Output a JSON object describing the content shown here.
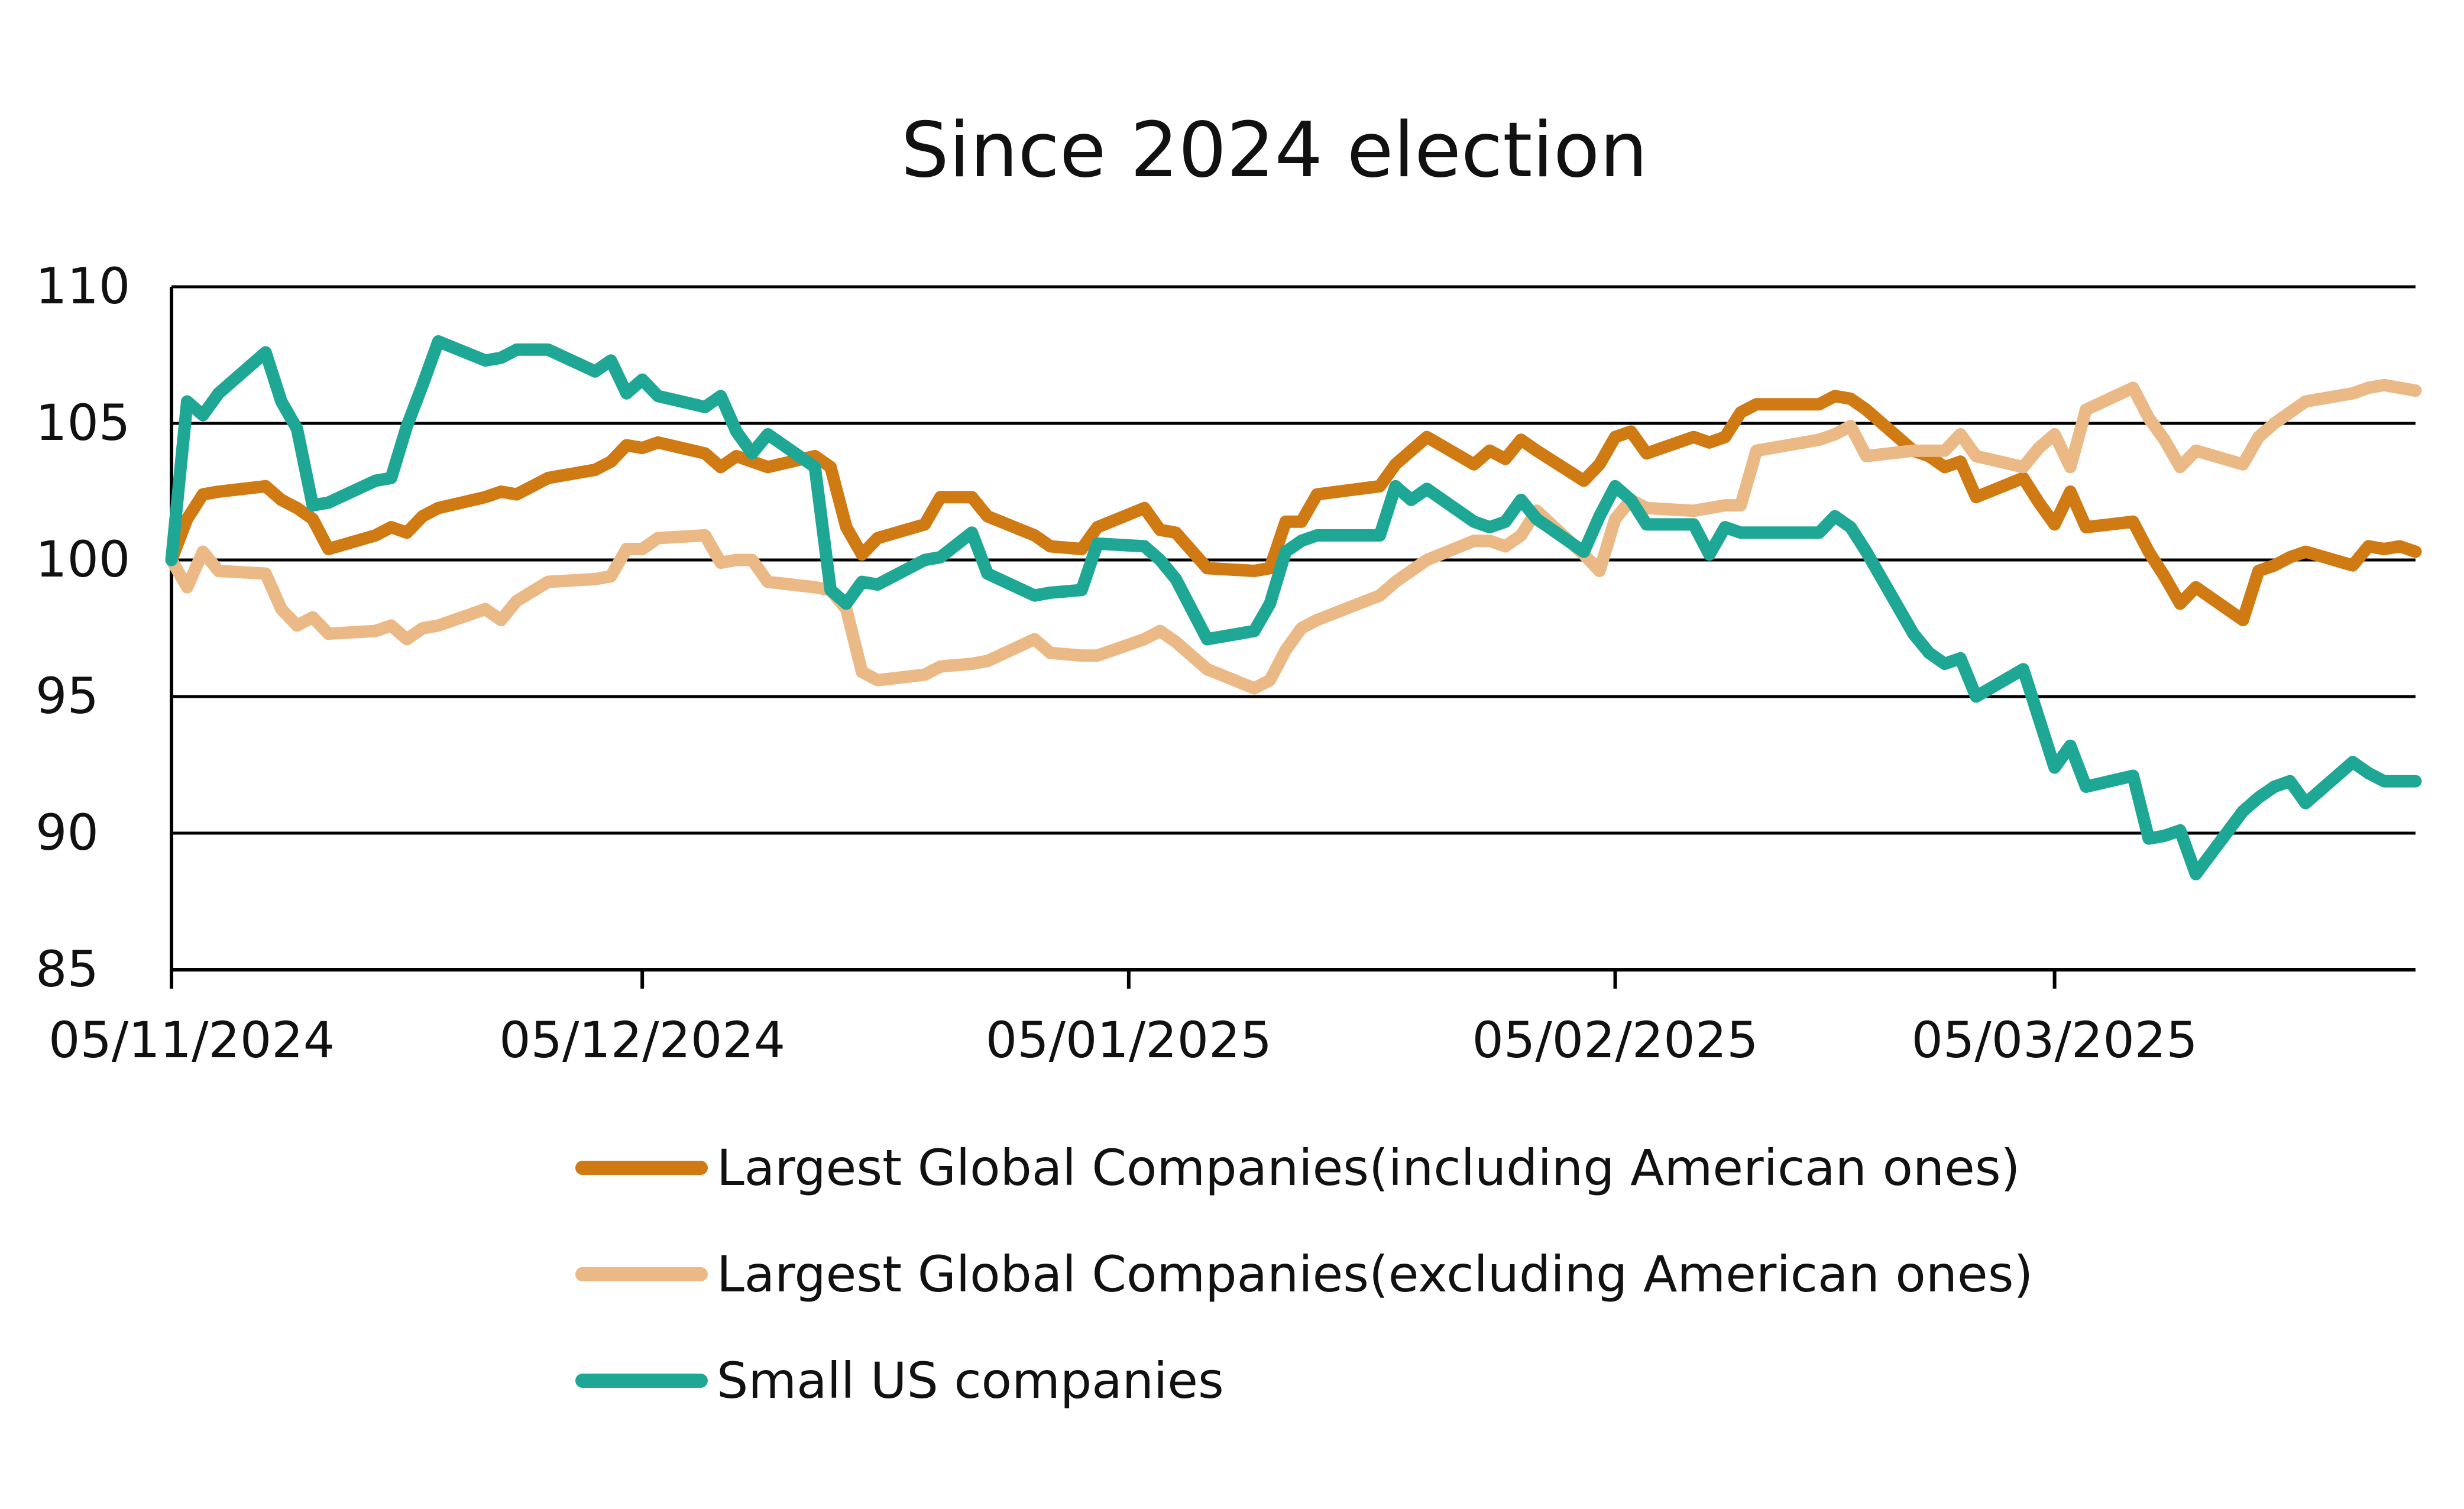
{
  "chart_data": {
    "type": "line",
    "title": "Since 2024 election",
    "xlabel": "",
    "ylabel": "",
    "ylim": [
      85,
      110
    ],
    "yticks": [
      "85",
      "90",
      "95",
      "100",
      "105",
      "110"
    ],
    "xlim": [
      "2024-11-05",
      "2025-03-28"
    ],
    "xticks": [
      {
        "date": "2024-11-05",
        "label": "05/11/2024"
      },
      {
        "date": "2024-12-05",
        "label": "05/12/2024"
      },
      {
        "date": "2025-01-05",
        "label": "05/01/2025"
      },
      {
        "date": "2025-02-05",
        "label": "05/02/2025"
      },
      {
        "date": "2025-03-05",
        "label": "05/03/2025"
      }
    ],
    "grid": true,
    "legend_position": "bottom",
    "series": [
      {
        "name": "Largest Global Companies(including American ones)",
        "color": "#D07A14",
        "x": [
          "2024-11-05",
          "2024-11-06",
          "2024-11-07",
          "2024-11-08",
          "2024-11-11",
          "2024-11-12",
          "2024-11-13",
          "2024-11-14",
          "2024-11-15",
          "2024-11-18",
          "2024-11-19",
          "2024-11-20",
          "2024-11-21",
          "2024-11-22",
          "2024-11-25",
          "2024-11-26",
          "2024-11-27",
          "2024-11-29",
          "2024-12-02",
          "2024-12-03",
          "2024-12-04",
          "2024-12-05",
          "2024-12-06",
          "2024-12-09",
          "2024-12-10",
          "2024-12-11",
          "2024-12-12",
          "2024-12-13",
          "2024-12-16",
          "2024-12-17",
          "2024-12-18",
          "2024-12-19",
          "2024-12-20",
          "2024-12-23",
          "2024-12-24",
          "2024-12-26",
          "2024-12-27",
          "2024-12-30",
          "2024-12-31",
          "2025-01-02",
          "2025-01-03",
          "2025-01-06",
          "2025-01-07",
          "2025-01-08",
          "2025-01-10",
          "2025-01-13",
          "2025-01-14",
          "2025-01-15",
          "2025-01-16",
          "2025-01-17",
          "2025-01-21",
          "2025-01-22",
          "2025-01-23",
          "2025-01-24",
          "2025-01-27",
          "2025-01-28",
          "2025-01-29",
          "2025-01-30",
          "2025-01-31",
          "2025-02-03",
          "2025-02-04",
          "2025-02-05",
          "2025-02-06",
          "2025-02-07",
          "2025-02-10",
          "2025-02-11",
          "2025-02-12",
          "2025-02-13",
          "2025-02-14",
          "2025-02-18",
          "2025-02-19",
          "2025-02-20",
          "2025-02-21",
          "2025-02-24",
          "2025-02-25",
          "2025-02-26",
          "2025-02-27",
          "2025-02-28",
          "2025-03-03",
          "2025-03-04",
          "2025-03-05",
          "2025-03-06",
          "2025-03-07",
          "2025-03-10",
          "2025-03-11",
          "2025-03-12",
          "2025-03-13",
          "2025-03-14",
          "2025-03-17",
          "2025-03-18",
          "2025-03-19",
          "2025-03-20",
          "2025-03-21",
          "2025-03-24",
          "2025-03-25",
          "2025-03-26",
          "2025-03-27",
          "2025-03-28"
        ],
        "values": [
          100.0,
          101.5,
          102.4,
          102.5,
          102.7,
          102.2,
          101.9,
          101.5,
          100.4,
          100.9,
          101.2,
          101.0,
          101.6,
          101.9,
          102.3,
          102.5,
          102.4,
          103.0,
          103.3,
          103.6,
          104.2,
          104.1,
          104.3,
          103.9,
          103.4,
          103.8,
          103.6,
          103.4,
          103.8,
          103.4,
          101.2,
          100.2,
          100.8,
          101.3,
          102.3,
          102.3,
          101.6,
          100.9,
          100.5,
          100.4,
          101.2,
          101.9,
          101.1,
          101.0,
          99.7,
          99.6,
          99.7,
          101.4,
          101.4,
          102.4,
          102.7,
          103.5,
          104.0,
          104.5,
          103.5,
          104.0,
          103.7,
          104.4,
          104.0,
          102.9,
          103.5,
          104.5,
          104.7,
          103.9,
          104.5,
          104.3,
          104.5,
          105.4,
          105.7,
          105.7,
          106.0,
          105.9,
          105.5,
          104.0,
          103.8,
          103.4,
          103.6,
          102.3,
          103.0,
          102.1,
          101.3,
          102.5,
          101.2,
          101.4,
          100.3,
          99.4,
          98.4,
          99.0,
          97.8,
          99.6,
          99.8,
          100.1,
          100.3,
          99.8,
          100.5,
          100.4,
          100.5,
          100.3
        ]
      },
      {
        "name": "Largest Global Companies(excluding American ones)",
        "color": "#EAB986",
        "x": [
          "2024-11-05",
          "2024-11-06",
          "2024-11-07",
          "2024-11-08",
          "2024-11-11",
          "2024-11-12",
          "2024-11-13",
          "2024-11-14",
          "2024-11-15",
          "2024-11-18",
          "2024-11-19",
          "2024-11-20",
          "2024-11-21",
          "2024-11-22",
          "2024-11-25",
          "2024-11-26",
          "2024-11-27",
          "2024-11-29",
          "2024-12-02",
          "2024-12-03",
          "2024-12-04",
          "2024-12-05",
          "2024-12-06",
          "2024-12-09",
          "2024-12-10",
          "2024-12-11",
          "2024-12-12",
          "2024-12-13",
          "2024-12-16",
          "2024-12-17",
          "2024-12-18",
          "2024-12-19",
          "2024-12-20",
          "2024-12-23",
          "2024-12-24",
          "2024-12-26",
          "2024-12-27",
          "2024-12-30",
          "2024-12-31",
          "2025-01-02",
          "2025-01-03",
          "2025-01-06",
          "2025-01-07",
          "2025-01-08",
          "2025-01-10",
          "2025-01-13",
          "2025-01-14",
          "2025-01-15",
          "2025-01-16",
          "2025-01-17",
          "2025-01-21",
          "2025-01-22",
          "2025-01-23",
          "2025-01-24",
          "2025-01-27",
          "2025-01-28",
          "2025-01-29",
          "2025-01-30",
          "2025-01-31",
          "2025-02-03",
          "2025-02-04",
          "2025-02-05",
          "2025-02-06",
          "2025-02-07",
          "2025-02-10",
          "2025-02-11",
          "2025-02-12",
          "2025-02-13",
          "2025-02-14",
          "2025-02-18",
          "2025-02-19",
          "2025-02-20",
          "2025-02-21",
          "2025-02-24",
          "2025-02-25",
          "2025-02-26",
          "2025-02-27",
          "2025-02-28",
          "2025-03-03",
          "2025-03-04",
          "2025-03-05",
          "2025-03-06",
          "2025-03-07",
          "2025-03-10",
          "2025-03-11",
          "2025-03-12",
          "2025-03-13",
          "2025-03-14",
          "2025-03-17",
          "2025-03-18",
          "2025-03-19",
          "2025-03-20",
          "2025-03-21",
          "2025-03-24",
          "2025-03-25",
          "2025-03-26",
          "2025-03-27",
          "2025-03-28"
        ],
        "values": [
          100.0,
          99.0,
          100.3,
          99.6,
          99.5,
          98.2,
          97.6,
          97.9,
          97.3,
          97.4,
          97.6,
          97.1,
          97.5,
          97.6,
          98.2,
          97.8,
          98.5,
          99.2,
          99.3,
          99.4,
          100.4,
          100.4,
          100.8,
          100.9,
          99.9,
          100.0,
          100.0,
          99.2,
          99.0,
          98.9,
          98.2,
          95.9,
          95.6,
          95.8,
          96.1,
          96.2,
          96.3,
          97.1,
          96.6,
          96.5,
          96.5,
          97.1,
          97.4,
          97.0,
          96.0,
          95.3,
          95.6,
          96.7,
          97.5,
          97.8,
          98.7,
          99.2,
          99.6,
          100.0,
          100.7,
          100.7,
          100.5,
          100.9,
          101.8,
          100.2,
          99.6,
          101.5,
          102.2,
          101.9,
          101.8,
          101.9,
          102.0,
          102.0,
          104.0,
          104.4,
          104.6,
          104.9,
          103.8,
          104.0,
          104.0,
          104.0,
          104.6,
          103.8,
          103.4,
          104.1,
          104.6,
          103.4,
          105.5,
          106.3,
          105.2,
          104.4,
          103.4,
          104.0,
          103.5,
          104.5,
          105.0,
          105.4,
          105.8,
          106.1,
          106.3,
          106.4,
          106.3,
          106.2
        ]
      },
      {
        "name": "Small US companies",
        "color": "#1FA796",
        "x": [
          "2024-11-05",
          "2024-11-06",
          "2024-11-07",
          "2024-11-08",
          "2024-11-11",
          "2024-11-12",
          "2024-11-13",
          "2024-11-14",
          "2024-11-15",
          "2024-11-18",
          "2024-11-19",
          "2024-11-20",
          "2024-11-21",
          "2024-11-22",
          "2024-11-25",
          "2024-11-26",
          "2024-11-27",
          "2024-11-29",
          "2024-12-02",
          "2024-12-03",
          "2024-12-04",
          "2024-12-05",
          "2024-12-06",
          "2024-12-09",
          "2024-12-10",
          "2024-12-11",
          "2024-12-12",
          "2024-12-13",
          "2024-12-16",
          "2024-12-17",
          "2024-12-18",
          "2024-12-19",
          "2024-12-20",
          "2024-12-23",
          "2024-12-24",
          "2024-12-26",
          "2024-12-27",
          "2024-12-30",
          "2024-12-31",
          "2025-01-02",
          "2025-01-03",
          "2025-01-06",
          "2025-01-07",
          "2025-01-08",
          "2025-01-10",
          "2025-01-13",
          "2025-01-14",
          "2025-01-15",
          "2025-01-16",
          "2025-01-17",
          "2025-01-21",
          "2025-01-22",
          "2025-01-23",
          "2025-01-24",
          "2025-01-27",
          "2025-01-28",
          "2025-01-29",
          "2025-01-30",
          "2025-01-31",
          "2025-02-03",
          "2025-02-04",
          "2025-02-05",
          "2025-02-06",
          "2025-02-07",
          "2025-02-10",
          "2025-02-11",
          "2025-02-12",
          "2025-02-13",
          "2025-02-14",
          "2025-02-18",
          "2025-02-19",
          "2025-02-20",
          "2025-02-21",
          "2025-02-24",
          "2025-02-25",
          "2025-02-26",
          "2025-02-27",
          "2025-02-28",
          "2025-03-03",
          "2025-03-04",
          "2025-03-05",
          "2025-03-06",
          "2025-03-07",
          "2025-03-10",
          "2025-03-11",
          "2025-03-12",
          "2025-03-13",
          "2025-03-14",
          "2025-03-17",
          "2025-03-18",
          "2025-03-19",
          "2025-03-20",
          "2025-03-21",
          "2025-03-24",
          "2025-03-25",
          "2025-03-26",
          "2025-03-27",
          "2025-03-28"
        ],
        "values": [
          100.0,
          105.8,
          105.3,
          106.1,
          107.6,
          105.8,
          104.8,
          102.0,
          102.1,
          102.9,
          103.0,
          104.9,
          106.4,
          108.0,
          107.3,
          107.4,
          107.7,
          107.7,
          106.9,
          107.3,
          106.1,
          106.6,
          106.0,
          105.6,
          106.0,
          104.7,
          103.9,
          104.6,
          103.4,
          98.9,
          98.4,
          99.2,
          99.1,
          100.0,
          100.1,
          101.0,
          99.5,
          98.7,
          98.8,
          98.9,
          100.6,
          100.5,
          100.0,
          99.3,
          97.1,
          97.4,
          98.4,
          100.3,
          100.7,
          100.9,
          100.9,
          102.7,
          102.2,
          102.6,
          101.4,
          101.2,
          101.4,
          102.2,
          101.5,
          100.3,
          101.6,
          102.7,
          102.2,
          101.3,
          101.3,
          100.2,
          101.2,
          101.0,
          101.0,
          101.0,
          101.6,
          101.2,
          100.3,
          97.3,
          96.6,
          96.2,
          96.4,
          95.0,
          96.0,
          94.2,
          92.4,
          93.2,
          91.7,
          92.1,
          89.8,
          89.9,
          90.1,
          88.5,
          90.8,
          91.3,
          91.7,
          91.9,
          91.1,
          92.6,
          92.2,
          91.9,
          91.9,
          91.9
        ]
      }
    ]
  }
}
